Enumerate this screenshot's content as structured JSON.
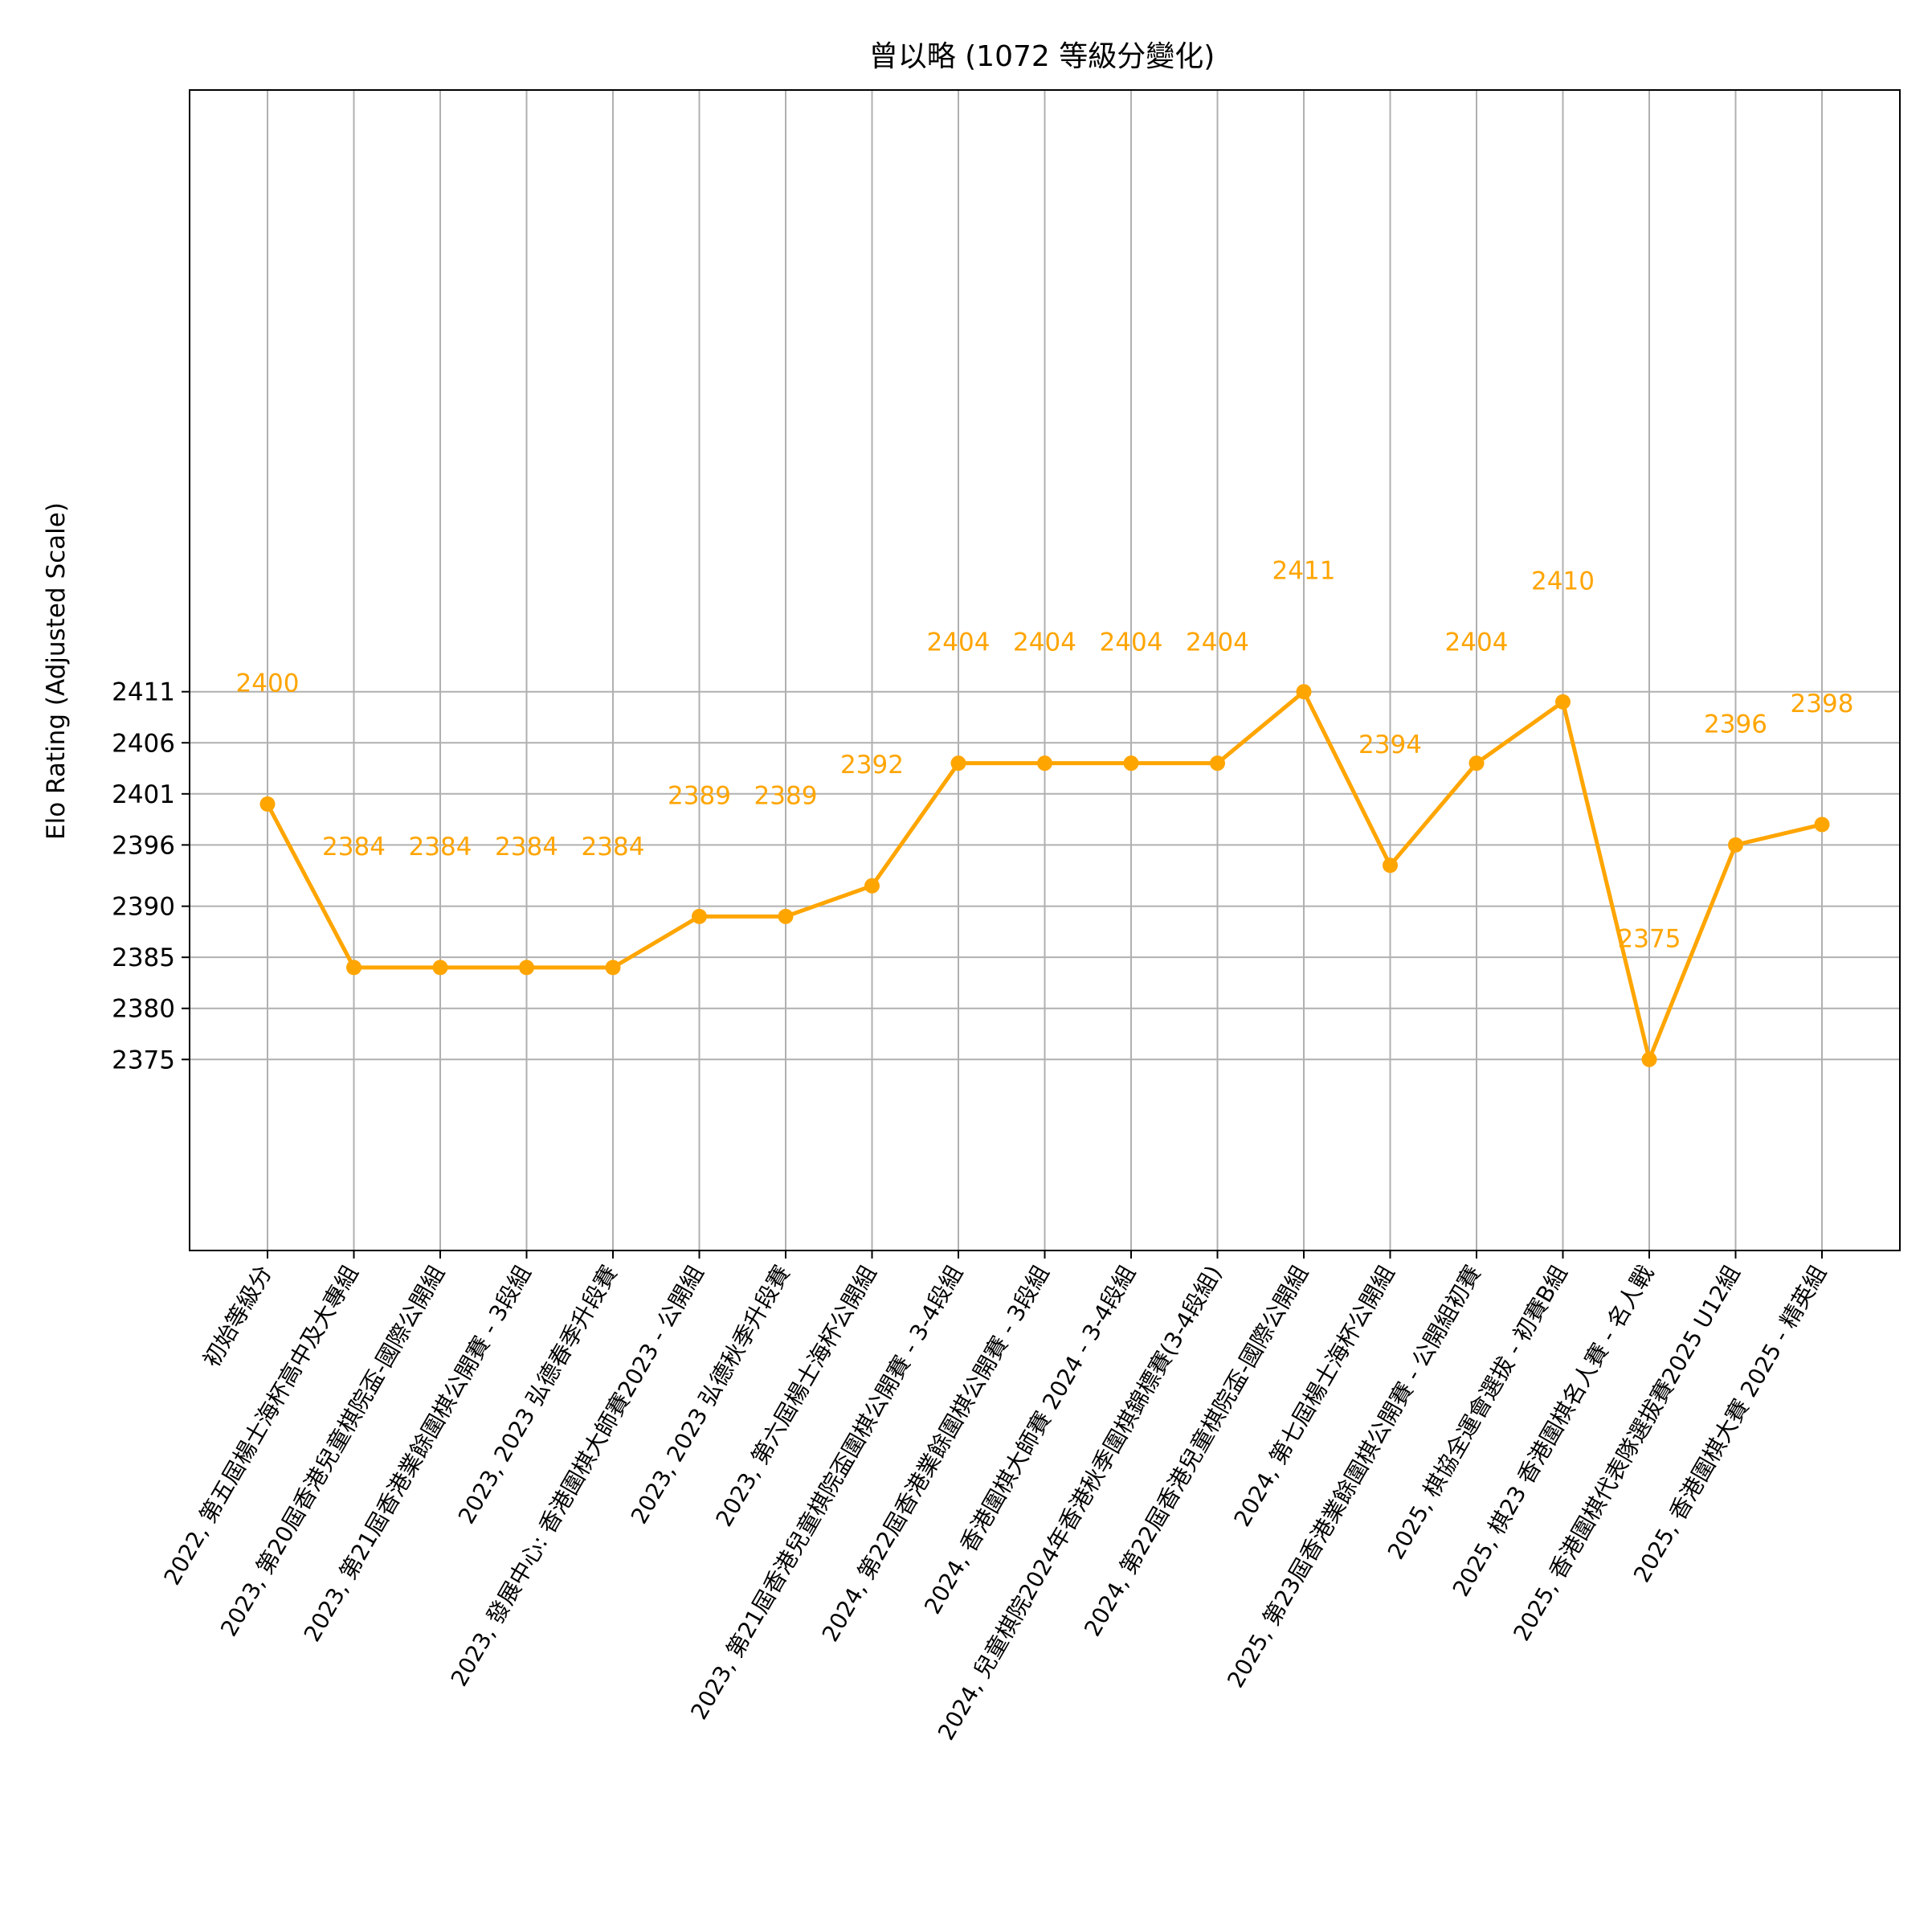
{
  "chart_data": {
    "type": "line",
    "title": "曾以略  (1072 等級分變化)",
    "xlabel": "",
    "ylabel": "Elo Rating (Adjusted Scale)",
    "ylim": [
      2356.3,
      2469.9
    ],
    "yticks": [
      2375,
      2380,
      2385,
      2390,
      2396,
      2401,
      2406,
      2411
    ],
    "ytick_labels": [
      "2375",
      "2380",
      "2385",
      "2390",
      "2396",
      "2401",
      "2406",
      "2411"
    ],
    "grid": true,
    "colors": {
      "series": "#FFA500",
      "grid": "#b0b0b0",
      "axis": "#000000",
      "text": "#000000"
    },
    "categories": [
      "初始等級分",
      "2022, 第五屆楊士海杯高中及大專組",
      "2023, 第20屆香港兒童棋院盃-國際公開組",
      "2023, 第21屆香港業餘圍棋公開賽 - 3段組",
      "2023, 2023 弘德春季升段賽",
      "2023, 發展中心: 香港圍棋大師賽2023 - 公開組",
      "2023, 2023 弘德秋季升段賽",
      "2023, 第六屆楊士海杯公開組",
      "2023, 第21屆香港兒童棋院盃圍棋公開賽 - 3-4段組",
      "2024, 第22屆香港業餘圍棋公開賽 - 3段組",
      "2024, 香港圍棋大師賽 2024 - 3-4段組",
      "2024, 兒童棋院2024年香港秋季圍棋錦標賽(3-4段組)",
      "2024, 第22屆香港兒童棋院盃-國際公開組",
      "2024, 第七屆楊士海杯公開組",
      "2025, 第23屆香港業餘圍棋公開賽 - 公開組初賽",
      "2025, 棋協全運會選拔 - 初賽B組",
      "2025, 棋23  香港圍棋名人賽 - 名人戰",
      "2025, 香港圍棋代表隊選拔賽2025 U12組",
      "2025, 香港圍棋大賽 2025 - 精英組"
    ],
    "series": [
      {
        "values": [
          2400,
          2384,
          2384,
          2384,
          2384,
          2389,
          2389,
          2392,
          2404,
          2404,
          2404,
          2404,
          2411,
          2394,
          2404,
          2410,
          2375,
          2396,
          2398
        ]
      }
    ],
    "data_labels": [
      "2400",
      "2384",
      "2384",
      "2384",
      "2384",
      "2389",
      "2389",
      "2392",
      "2404",
      "2404",
      "2404",
      "2404",
      "2411",
      "2394",
      "2404",
      "2410",
      "2375",
      "2396",
      "2398"
    ]
  }
}
